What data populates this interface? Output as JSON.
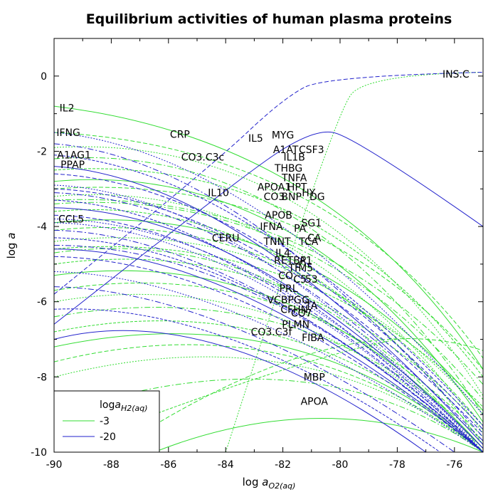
{
  "chart_data": {
    "type": "line",
    "title": "Equilibrium activities of human plasma proteins",
    "xlabel": {
      "prefix": "log ",
      "var": "a",
      "sub": "O2(aq)"
    },
    "ylabel": {
      "prefix": "log ",
      "var": "a"
    },
    "xlim": [
      -90,
      -75
    ],
    "ylim": [
      -10,
      1
    ],
    "xticks": [
      -90,
      -88,
      -86,
      -84,
      -82,
      -80,
      -78,
      -76
    ],
    "yticks": [
      -10,
      -8,
      -6,
      -4,
      -2,
      0
    ],
    "grid": false,
    "legend": {
      "placement": "bottom-left",
      "title": {
        "prefix": "log",
        "var": "a",
        "sub": "H2(aq)"
      },
      "entries": [
        {
          "label": "-3",
          "color": "#33dd33"
        },
        {
          "label": "-20",
          "color": "#2222cc"
        }
      ]
    },
    "colors": {
      "logaH2_-3": "#33dd33",
      "logaH2_-20": "#2222cc"
    },
    "protein_labels": [
      {
        "text": "INS.C",
        "x": -75.95,
        "y": 0.05
      },
      {
        "text": "IL2",
        "x": -89.55,
        "y": -0.85
      },
      {
        "text": "IFNG",
        "x": -89.5,
        "y": -1.5
      },
      {
        "text": "CRP",
        "x": -85.6,
        "y": -1.55
      },
      {
        "text": "IL5",
        "x": -82.95,
        "y": -1.65
      },
      {
        "text": "MYG",
        "x": -82.0,
        "y": -1.57
      },
      {
        "text": "A1AG1",
        "x": -89.3,
        "y": -2.1
      },
      {
        "text": "CO3.C3c",
        "x": -84.8,
        "y": -2.15
      },
      {
        "text": "A1AT",
        "x": -81.9,
        "y": -1.95
      },
      {
        "text": "CSF3",
        "x": -81.0,
        "y": -1.95
      },
      {
        "text": "IL1B",
        "x": -81.6,
        "y": -2.15
      },
      {
        "text": "PPAP",
        "x": -89.35,
        "y": -2.35
      },
      {
        "text": "THBG",
        "x": -81.8,
        "y": -2.45
      },
      {
        "text": "TNFA",
        "x": -81.6,
        "y": -2.7
      },
      {
        "text": "APOA1",
        "x": -82.3,
        "y": -2.95
      },
      {
        "text": "HPT",
        "x": -81.5,
        "y": -2.95
      },
      {
        "text": "HY",
        "x": -81.1,
        "y": -3.1
      },
      {
        "text": "IL10",
        "x": -84.25,
        "y": -3.1
      },
      {
        "text": "CO3",
        "x": -82.3,
        "y": -3.2
      },
      {
        "text": "BNP",
        "x": -81.7,
        "y": -3.2
      },
      {
        "text": "DG",
        "x": -80.8,
        "y": -3.2
      },
      {
        "text": "APOB",
        "x": -82.15,
        "y": -3.7
      },
      {
        "text": "SG1",
        "x": -81.0,
        "y": -3.9
      },
      {
        "text": "CCL5",
        "x": -89.4,
        "y": -3.8
      },
      {
        "text": "IFNA",
        "x": -82.4,
        "y": -4.0
      },
      {
        "text": "PA",
        "x": -81.4,
        "y": -4.05
      },
      {
        "text": "CA",
        "x": -80.9,
        "y": -4.3
      },
      {
        "text": "CERU",
        "x": -84.0,
        "y": -4.3
      },
      {
        "text": "TNNT",
        "x": -82.2,
        "y": -4.4
      },
      {
        "text": "TCA",
        "x": -81.1,
        "y": -4.4
      },
      {
        "text": "IL4",
        "x": -82.0,
        "y": -4.7
      },
      {
        "text": "RETBP",
        "x": -81.75,
        "y": -4.9
      },
      {
        "text": "A1",
        "x": -81.2,
        "y": -4.9
      },
      {
        "text": "TF",
        "x": -81.6,
        "y": -5.1
      },
      {
        "text": "M5",
        "x": -81.2,
        "y": -5.1
      },
      {
        "text": "CO",
        "x": -81.9,
        "y": -5.3
      },
      {
        "text": "C5",
        "x": -81.4,
        "y": -5.4
      },
      {
        "text": "53",
        "x": -81.0,
        "y": -5.4
      },
      {
        "text": "PRL",
        "x": -81.8,
        "y": -5.65
      },
      {
        "text": "VCBPG",
        "x": -81.95,
        "y": -5.95
      },
      {
        "text": "G",
        "x": -81.2,
        "y": -5.95
      },
      {
        "text": "TA",
        "x": -81.0,
        "y": -6.1
      },
      {
        "text": "CFHN",
        "x": -81.6,
        "y": -6.2
      },
      {
        "text": "CO7",
        "x": -81.35,
        "y": -6.3
      },
      {
        "text": "PLMN",
        "x": -81.55,
        "y": -6.6
      },
      {
        "text": "CO3.C3f",
        "x": -82.4,
        "y": -6.8
      },
      {
        "text": "FIBA",
        "x": -80.95,
        "y": -6.95
      },
      {
        "text": "MBP",
        "x": -80.9,
        "y": -8.0
      },
      {
        "text": "APOA",
        "x": -80.9,
        "y": -8.65
      }
    ],
    "series": [
      {
        "group": "-3",
        "points": [
          [
            -90,
            -0.8
          ],
          [
            -80.2,
            -1.7
          ],
          [
            -75,
            -7.8
          ]
        ]
      },
      {
        "group": "-3",
        "points": [
          [
            -90,
            -1.5
          ],
          [
            -80.3,
            -1.9
          ],
          [
            -75,
            -7.5
          ]
        ]
      },
      {
        "group": "-3",
        "points": [
          [
            -90,
            -1.9
          ],
          [
            -80.8,
            -1.5
          ],
          [
            -75,
            -8.5
          ]
        ]
      },
      {
        "group": "-3",
        "points": [
          [
            -90,
            -2.2
          ],
          [
            -81.2,
            -1.7
          ],
          [
            -75,
            -9.0
          ]
        ]
      },
      {
        "group": "-3",
        "points": [
          [
            -90,
            -2.5
          ],
          [
            -81.0,
            -2.0
          ],
          [
            -75,
            -8.0
          ]
        ]
      },
      {
        "group": "-3",
        "points": [
          [
            -90,
            -2.8
          ],
          [
            -81.3,
            -2.2
          ],
          [
            -75,
            -9.2
          ]
        ]
      },
      {
        "group": "-3",
        "points": [
          [
            -90,
            -3.0
          ],
          [
            -81.0,
            -2.5
          ],
          [
            -75,
            -7.8
          ]
        ]
      },
      {
        "group": "-3",
        "points": [
          [
            -90,
            -3.2
          ],
          [
            -81.4,
            -2.6
          ],
          [
            -75,
            -9.5
          ]
        ]
      },
      {
        "group": "-3",
        "points": [
          [
            -90,
            -3.4
          ],
          [
            -81.2,
            -2.9
          ],
          [
            -75,
            -8.6
          ]
        ]
      },
      {
        "group": "-3",
        "points": [
          [
            -90,
            -3.6
          ],
          [
            -81.5,
            -3.0
          ],
          [
            -75,
            -9.8
          ]
        ]
      },
      {
        "group": "-3",
        "points": [
          [
            -90,
            -3.9
          ],
          [
            -81.3,
            -3.2
          ],
          [
            -75,
            -8.9
          ]
        ]
      },
      {
        "group": "-3",
        "points": [
          [
            -90,
            -4.1
          ],
          [
            -81.4,
            -3.4
          ],
          [
            -75,
            -9.3
          ]
        ]
      },
      {
        "group": "-3",
        "points": [
          [
            -90,
            -4.4
          ],
          [
            -81.2,
            -3.6
          ],
          [
            -75,
            -9.0
          ]
        ]
      },
      {
        "group": "-3",
        "points": [
          [
            -90,
            -4.7
          ],
          [
            -81.6,
            -3.8
          ],
          [
            -75,
            -10.0
          ]
        ]
      },
      {
        "group": "-3",
        "points": [
          [
            -90,
            -5.0
          ],
          [
            -81.3,
            -4.1
          ],
          [
            -75,
            -9.4
          ]
        ]
      },
      {
        "group": "-3",
        "points": [
          [
            -90,
            -5.3
          ],
          [
            -81.5,
            -4.4
          ],
          [
            -75,
            -9.9
          ]
        ]
      },
      {
        "group": "-3",
        "points": [
          [
            -90,
            -5.7
          ],
          [
            -81.4,
            -4.6
          ],
          [
            -75,
            -9.6
          ]
        ]
      },
      {
        "group": "-3",
        "points": [
          [
            -90,
            -6.0
          ],
          [
            -81.6,
            -4.9
          ],
          [
            -75,
            -10.0
          ]
        ]
      },
      {
        "group": "-3",
        "points": [
          [
            -90,
            -6.4
          ],
          [
            -81.3,
            -5.2
          ],
          [
            -75,
            -9.7
          ]
        ]
      },
      {
        "group": "-3",
        "points": [
          [
            -90,
            -6.8
          ],
          [
            -81.5,
            -5.5
          ],
          [
            -75,
            -10.0
          ]
        ]
      },
      {
        "group": "-3",
        "points": [
          [
            -90,
            -7.2
          ],
          [
            -81.4,
            -5.8
          ],
          [
            -75,
            -10.0
          ]
        ]
      },
      {
        "group": "-3",
        "points": [
          [
            -90,
            -7.6
          ],
          [
            -81.6,
            -6.0
          ],
          [
            -75,
            -10.0
          ]
        ]
      },
      {
        "group": "-3",
        "points": [
          [
            -90,
            -8.0
          ],
          [
            -81.2,
            -6.3
          ],
          [
            -75,
            -10.0
          ]
        ]
      },
      {
        "group": "-3",
        "points": [
          [
            -90,
            -9.0
          ],
          [
            -81.0,
            -6.7
          ],
          [
            -75,
            -10.0
          ]
        ]
      },
      {
        "group": "-3",
        "points": [
          [
            -90,
            -10.0
          ],
          [
            -81.5,
            -7.5
          ],
          [
            -78,
            -7.0
          ]
        ]
      },
      {
        "group": "-3",
        "points": [
          [
            -86.5,
            -10.0
          ],
          [
            -80.5,
            -8.2
          ],
          [
            -75,
            -10.0
          ]
        ]
      },
      {
        "group": "-3",
        "points": [
          [
            -88.0,
            -10.0
          ],
          [
            -80.0,
            -6.0
          ],
          [
            -75,
            -7.3
          ]
        ]
      },
      {
        "group": "-3",
        "points": [
          [
            -84.0,
            -10.0
          ],
          [
            -80.2,
            -1.0
          ],
          [
            -79.0,
            0.05
          ],
          [
            -75,
            0.1
          ]
        ]
      },
      {
        "group": "-3",
        "points": [
          [
            -90,
            -3.3
          ],
          [
            -81.0,
            -3.0
          ],
          [
            -75,
            -8.2
          ]
        ]
      },
      {
        "group": "-3",
        "points": [
          [
            -90,
            -4.6
          ],
          [
            -81.2,
            -4.0
          ],
          [
            -75,
            -8.8
          ]
        ]
      },
      {
        "group": "-20",
        "points": [
          [
            -90,
            -6.6
          ],
          [
            -84.0,
            -3.0
          ],
          [
            -81.0,
            -1.4
          ],
          [
            -79.5,
            -1.6
          ],
          [
            -75,
            -4.0
          ]
        ]
      },
      {
        "group": "-20",
        "points": [
          [
            -90,
            -5.8
          ],
          [
            -84.5,
            -2.4
          ],
          [
            -82.0,
            -0.6
          ],
          [
            -80.5,
            0.0
          ],
          [
            -75,
            0.1
          ]
        ]
      },
      {
        "group": "-20",
        "points": [
          [
            -90,
            -1.5
          ],
          [
            -83.0,
            -2.0
          ],
          [
            -75,
            -9.0
          ]
        ]
      },
      {
        "group": "-20",
        "points": [
          [
            -90,
            -1.8
          ],
          [
            -83.5,
            -2.2
          ],
          [
            -75,
            -9.6
          ]
        ]
      },
      {
        "group": "-20",
        "points": [
          [
            -90,
            -2.1
          ],
          [
            -83.2,
            -2.5
          ],
          [
            -75,
            -9.3
          ]
        ]
      },
      {
        "group": "-20",
        "points": [
          [
            -90,
            -2.4
          ],
          [
            -83.6,
            -2.7
          ],
          [
            -75,
            -9.8
          ]
        ]
      },
      {
        "group": "-20",
        "points": [
          [
            -90,
            -2.6
          ],
          [
            -83.0,
            -2.9
          ],
          [
            -75,
            -9.4
          ]
        ]
      },
      {
        "group": "-20",
        "points": [
          [
            -90,
            -2.9
          ],
          [
            -83.4,
            -3.1
          ],
          [
            -75,
            -10.0
          ]
        ]
      },
      {
        "group": "-20",
        "points": [
          [
            -90,
            -3.1
          ],
          [
            -83.2,
            -3.3
          ],
          [
            -75,
            -9.7
          ]
        ]
      },
      {
        "group": "-20",
        "points": [
          [
            -90,
            -3.3
          ],
          [
            -83.6,
            -3.5
          ],
          [
            -75,
            -10.0
          ]
        ]
      },
      {
        "group": "-20",
        "points": [
          [
            -90,
            -3.5
          ],
          [
            -83.1,
            -3.6
          ],
          [
            -75,
            -9.9
          ]
        ]
      },
      {
        "group": "-20",
        "points": [
          [
            -90,
            -3.7
          ],
          [
            -83.5,
            -3.8
          ],
          [
            -75,
            -10.0
          ]
        ]
      },
      {
        "group": "-20",
        "points": [
          [
            -90,
            -3.9
          ],
          [
            -83.3,
            -4.0
          ],
          [
            -75,
            -10.0
          ]
        ]
      },
      {
        "group": "-20",
        "points": [
          [
            -90,
            -4.1
          ],
          [
            -83.7,
            -4.2
          ],
          [
            -75,
            -10.0
          ]
        ]
      },
      {
        "group": "-20",
        "points": [
          [
            -90,
            -4.3
          ],
          [
            -83.2,
            -4.4
          ],
          [
            -75,
            -10.0
          ]
        ]
      },
      {
        "group": "-20",
        "points": [
          [
            -90,
            -4.6
          ],
          [
            -83.6,
            -4.6
          ],
          [
            -75,
            -10.0
          ]
        ]
      },
      {
        "group": "-20",
        "points": [
          [
            -90,
            -4.8
          ],
          [
            -83.4,
            -4.9
          ],
          [
            -75,
            -10.0
          ]
        ]
      },
      {
        "group": "-20",
        "points": [
          [
            -90,
            -5.2
          ],
          [
            -83.8,
            -5.3
          ],
          [
            -75,
            -10.0
          ]
        ]
      },
      {
        "group": "-20",
        "points": [
          [
            -90,
            -5.6
          ],
          [
            -84.0,
            -5.7
          ],
          [
            -76,
            -10.0
          ]
        ]
      },
      {
        "group": "-20",
        "points": [
          [
            -90,
            -6.2
          ],
          [
            -84.0,
            -6.0
          ],
          [
            -76.5,
            -10.0
          ]
        ]
      },
      {
        "group": "-20",
        "points": [
          [
            -90,
            -7.0
          ],
          [
            -84.5,
            -5.9
          ],
          [
            -77,
            -10.0
          ]
        ]
      },
      {
        "group": "-20",
        "points": [
          [
            -90,
            -3.0
          ],
          [
            -83.0,
            -3.2
          ],
          [
            -75,
            -9.5
          ]
        ]
      },
      {
        "group": "-20",
        "points": [
          [
            -90,
            -3.8
          ],
          [
            -83.0,
            -3.9
          ],
          [
            -75,
            -9.9
          ]
        ]
      },
      {
        "group": "-20",
        "points": [
          [
            -90,
            -4.5
          ],
          [
            -83.0,
            -4.5
          ],
          [
            -75,
            -10.0
          ]
        ]
      }
    ]
  }
}
